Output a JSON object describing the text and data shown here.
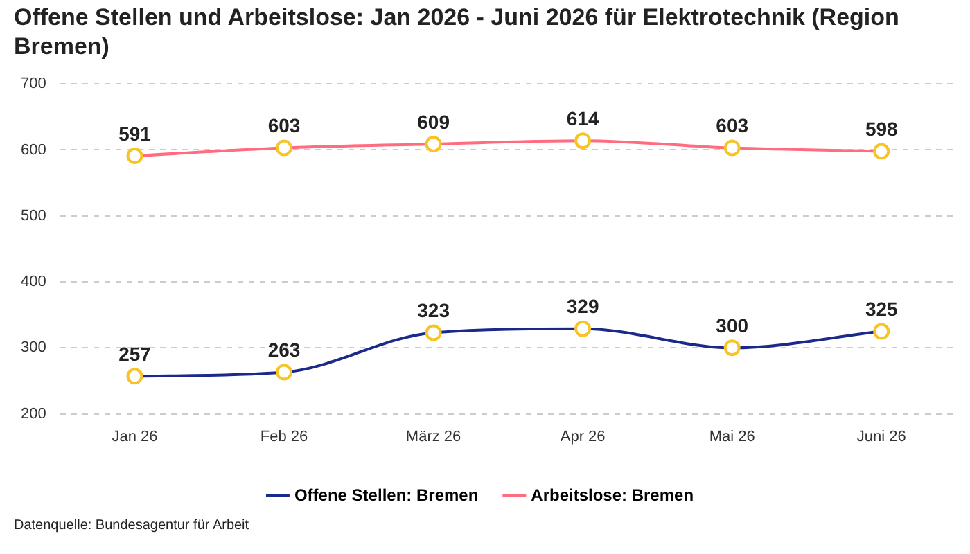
{
  "chart_data": {
    "type": "line",
    "title": "Offene Stellen und Arbeitslose: Jan 2026 - Juni 2026 für Elektrotechnik (Region Bremen)",
    "categories": [
      "Jan 26",
      "Feb 26",
      "März 26",
      "Apr 26",
      "Mai 26",
      "Juni 26"
    ],
    "series": [
      {
        "name": "Offene Stellen: Bremen",
        "color": "#1b2a8a",
        "values": [
          257,
          263,
          323,
          329,
          300,
          325
        ]
      },
      {
        "name": "Arbeitslose: Bremen",
        "color": "#ff6b7f",
        "values": [
          591,
          603,
          609,
          614,
          603,
          598
        ]
      }
    ],
    "ylim": [
      200,
      700
    ],
    "yticks": [
      200,
      300,
      400,
      500,
      600,
      700
    ],
    "grid": "y",
    "legend": "bottom",
    "marker": "circle",
    "line_style": "solid",
    "data_labels": true,
    "annotations": [
      "Datenquelle: Bundesagentur für Arbeit"
    ]
  }
}
